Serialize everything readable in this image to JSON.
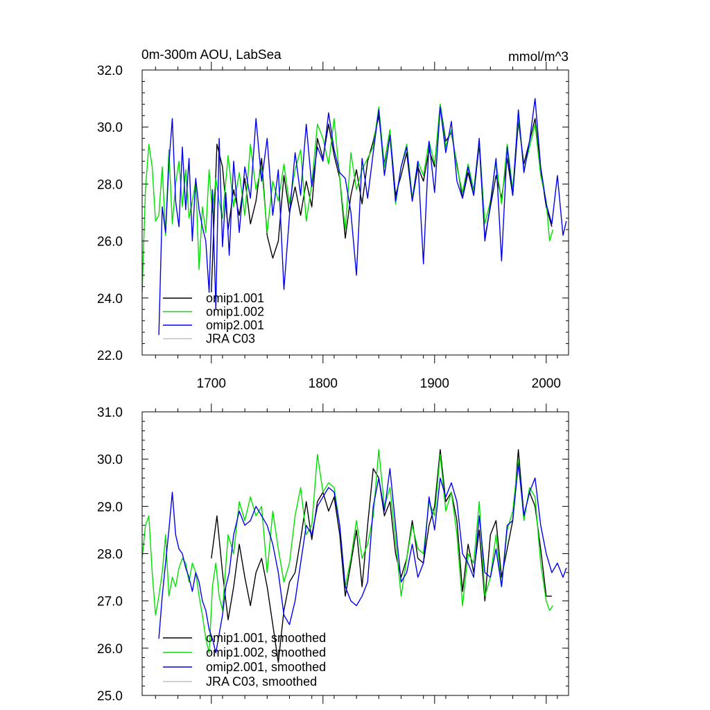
{
  "chart_data": [
    {
      "type": "line",
      "title": "0m-300m AOU, LabSea",
      "units": "mmol/m^3",
      "xlim": [
        1638,
        2020
      ],
      "ylim": [
        22.0,
        32.0
      ],
      "xticks": [
        1700,
        1800,
        1900,
        2000
      ],
      "xtick_labels": [
        "1700",
        "1800",
        "1900",
        "2000"
      ],
      "yticks": [
        22.0,
        24.0,
        26.0,
        28.0,
        30.0,
        32.0
      ],
      "ytick_labels": [
        "22.0",
        "24.0",
        "26.0",
        "28.0",
        "30.0",
        "32.0"
      ],
      "legend_position": "bottom-left",
      "series": [
        {
          "name": "omip1.001",
          "color": "#000000",
          "x": [
            1700,
            1705,
            1710,
            1715,
            1720,
            1725,
            1730,
            1735,
            1740,
            1745,
            1750,
            1755,
            1760,
            1765,
            1770,
            1775,
            1780,
            1785,
            1790,
            1795,
            1800,
            1805,
            1810,
            1815,
            1820,
            1825,
            1830,
            1835,
            1840,
            1845,
            1850,
            1855,
            1860,
            1865,
            1870,
            1875,
            1880,
            1885,
            1890,
            1895,
            1900,
            1905,
            1910,
            1915,
            1920,
            1925,
            1930,
            1935,
            1940,
            1945,
            1950,
            1955,
            1960,
            1965,
            1970,
            1975,
            1980,
            1985,
            1990,
            1995,
            2000,
            2005
          ],
          "y": [
            24.2,
            29.4,
            28.6,
            26.4,
            27.8,
            26.9,
            28.2,
            26.6,
            27.4,
            28.9,
            26.2,
            25.4,
            26.0,
            28.3,
            27.0,
            27.9,
            26.9,
            28.1,
            27.2,
            29.6,
            28.9,
            30.1,
            29.0,
            28.2,
            26.1,
            27.6,
            28.5,
            27.3,
            28.8,
            29.5,
            30.4,
            28.7,
            29.9,
            27.6,
            28.3,
            29.1,
            27.4,
            28.6,
            28.1,
            29.2,
            28.6,
            30.8,
            29.5,
            29.8,
            28.7,
            27.5,
            28.4,
            27.6,
            29.4,
            26.1,
            27.2,
            28.3,
            27.5,
            28.9,
            27.6,
            30.2,
            28.7,
            29.5,
            30.3,
            28.5,
            27.2,
            26.5
          ]
        },
        {
          "name": "omip1.002",
          "color": "#00e000",
          "x": [
            1638,
            1641,
            1644,
            1647,
            1650,
            1653,
            1656,
            1659,
            1662,
            1665,
            1668,
            1671,
            1674,
            1677,
            1680,
            1683,
            1686,
            1689,
            1692,
            1695,
            1698,
            1701,
            1704,
            1707,
            1710,
            1715,
            1720,
            1725,
            1730,
            1735,
            1740,
            1745,
            1750,
            1755,
            1760,
            1765,
            1770,
            1775,
            1780,
            1785,
            1790,
            1795,
            1800,
            1805,
            1810,
            1815,
            1820,
            1825,
            1830,
            1835,
            1840,
            1845,
            1850,
            1855,
            1860,
            1865,
            1870,
            1875,
            1880,
            1885,
            1890,
            1895,
            1900,
            1905,
            1910,
            1915,
            1920,
            1925,
            1930,
            1935,
            1940,
            1945,
            1950,
            1955,
            1960,
            1965,
            1970,
            1975,
            1980,
            1985,
            1990,
            1995,
            2000,
            2003,
            2006
          ],
          "y": [
            24.2,
            27.8,
            29.4,
            28.6,
            26.7,
            26.9,
            28.6,
            26.2,
            29.2,
            26.6,
            28.0,
            28.8,
            27.2,
            28.5,
            26.8,
            27.4,
            28.1,
            25.0,
            27.2,
            26.3,
            28.5,
            27.0,
            28.2,
            27.4,
            26.8,
            29.0,
            27.2,
            28.4,
            26.9,
            29.4,
            27.8,
            28.6,
            26.3,
            28.1,
            27.4,
            28.7,
            27.3,
            28.5,
            29.2,
            26.7,
            28.0,
            30.1,
            29.6,
            28.7,
            30.3,
            28.2,
            26.4,
            29.1,
            27.8,
            28.5,
            28.9,
            29.3,
            30.7,
            28.6,
            29.9,
            27.3,
            28.6,
            29.4,
            27.5,
            28.8,
            28.3,
            29.5,
            28.7,
            30.8,
            29.3,
            29.9,
            28.6,
            27.7,
            28.7,
            27.8,
            29.5,
            26.6,
            27.4,
            28.8,
            27.3,
            29.4,
            27.8,
            30.4,
            28.5,
            29.3,
            30.1,
            28.3,
            27.4,
            26.0,
            26.4
          ]
        },
        {
          "name": "omip2.001",
          "color": "#0000ee",
          "x": [
            1653,
            1656,
            1659,
            1662,
            1665,
            1668,
            1671,
            1674,
            1677,
            1680,
            1683,
            1686,
            1689,
            1692,
            1695,
            1698,
            1701,
            1704,
            1707,
            1710,
            1713,
            1716,
            1720,
            1725,
            1730,
            1735,
            1740,
            1745,
            1750,
            1755,
            1760,
            1765,
            1770,
            1775,
            1780,
            1785,
            1790,
            1795,
            1800,
            1805,
            1810,
            1815,
            1820,
            1825,
            1830,
            1835,
            1840,
            1845,
            1850,
            1855,
            1860,
            1865,
            1870,
            1875,
            1880,
            1885,
            1890,
            1895,
            1900,
            1905,
            1910,
            1915,
            1920,
            1925,
            1930,
            1935,
            1940,
            1945,
            1950,
            1955,
            1960,
            1965,
            1970,
            1975,
            1980,
            1985,
            1990,
            1995,
            2000,
            2005,
            2010,
            2015,
            2018
          ],
          "y": [
            22.7,
            27.2,
            26.3,
            28.7,
            30.3,
            27.4,
            26.5,
            29.3,
            27.1,
            28.9,
            26.0,
            28.2,
            27.1,
            26.5,
            26.0,
            24.2,
            27.8,
            23.6,
            29.6,
            25.8,
            27.7,
            25.5,
            28.8,
            26.3,
            28.6,
            27.5,
            30.3,
            28.1,
            29.6,
            26.9,
            28.5,
            24.3,
            26.9,
            29.1,
            27.6,
            30.1,
            27.9,
            29.3,
            28.8,
            30.5,
            29.2,
            28.4,
            28.2,
            27.0,
            24.8,
            28.9,
            27.5,
            29.1,
            30.6,
            28.3,
            29.7,
            27.4,
            28.6,
            29.3,
            27.4,
            28.8,
            25.2,
            29.5,
            27.7,
            30.7,
            29.1,
            30.2,
            28.1,
            27.5,
            28.6,
            27.6,
            29.6,
            26.0,
            27.3,
            28.9,
            25.3,
            29.3,
            27.6,
            30.6,
            28.4,
            29.5,
            31.0,
            28.6,
            27.3,
            26.6,
            28.3,
            26.2,
            26.7
          ]
        },
        {
          "name": "JRA C03",
          "color": "#c0c0c0",
          "x": [],
          "y": []
        }
      ]
    },
    {
      "type": "line",
      "title": "",
      "xlim": [
        1638,
        2020
      ],
      "ylim": [
        25.0,
        31.0
      ],
      "xticks": [
        1700,
        1800,
        1900,
        2000
      ],
      "yticks": [
        25.0,
        26.0,
        27.0,
        28.0,
        29.0,
        30.0,
        31.0
      ],
      "ytick_labels": [
        "25.0",
        "26.0",
        "27.0",
        "28.0",
        "29.0",
        "30.0",
        "31.0"
      ],
      "legend_position": "bottom-left",
      "series": [
        {
          "name": "omip1.001, smoothed",
          "color": "#000000",
          "x": [
            1700,
            1705,
            1710,
            1715,
            1720,
            1725,
            1730,
            1735,
            1740,
            1745,
            1750,
            1755,
            1760,
            1765,
            1770,
            1775,
            1780,
            1785,
            1790,
            1795,
            1800,
            1805,
            1810,
            1815,
            1820,
            1825,
            1830,
            1835,
            1840,
            1845,
            1850,
            1855,
            1860,
            1865,
            1870,
            1875,
            1880,
            1885,
            1890,
            1895,
            1900,
            1905,
            1910,
            1915,
            1920,
            1925,
            1930,
            1935,
            1940,
            1945,
            1950,
            1955,
            1960,
            1965,
            1970,
            1975,
            1980,
            1985,
            1990,
            1995,
            2000,
            2005
          ],
          "y": [
            27.9,
            28.8,
            27.6,
            26.6,
            27.3,
            28.2,
            27.5,
            26.9,
            27.6,
            27.9,
            27.3,
            26.5,
            25.7,
            26.8,
            27.4,
            27.6,
            28.3,
            29.1,
            28.3,
            29.1,
            29.3,
            28.9,
            29.2,
            28.4,
            27.1,
            27.8,
            28.5,
            27.3,
            28.6,
            29.8,
            29.6,
            28.8,
            29.1,
            28.0,
            27.5,
            27.9,
            28.7,
            27.9,
            27.8,
            28.6,
            29.0,
            30.2,
            29.1,
            29.3,
            28.7,
            27.2,
            28.2,
            27.6,
            28.5,
            27.0,
            28.4,
            28.7,
            27.5,
            28.1,
            28.7,
            30.2,
            28.8,
            29.3,
            29.0,
            28.1,
            27.1,
            27.1
          ]
        },
        {
          "name": "omip1.002, smoothed",
          "color": "#00e000",
          "x": [
            1638,
            1641,
            1644,
            1647,
            1650,
            1653,
            1656,
            1659,
            1662,
            1665,
            1668,
            1671,
            1674,
            1677,
            1680,
            1683,
            1686,
            1689,
            1692,
            1695,
            1698,
            1701,
            1704,
            1707,
            1710,
            1715,
            1720,
            1725,
            1730,
            1735,
            1740,
            1745,
            1750,
            1755,
            1760,
            1765,
            1770,
            1775,
            1780,
            1785,
            1790,
            1795,
            1800,
            1805,
            1810,
            1815,
            1820,
            1825,
            1830,
            1835,
            1840,
            1845,
            1850,
            1855,
            1860,
            1865,
            1870,
            1875,
            1880,
            1885,
            1890,
            1895,
            1900,
            1905,
            1910,
            1915,
            1920,
            1925,
            1930,
            1935,
            1940,
            1945,
            1950,
            1955,
            1960,
            1965,
            1970,
            1975,
            1980,
            1985,
            1990,
            1995,
            2000,
            2003,
            2006
          ],
          "y": [
            27.9,
            28.6,
            28.8,
            27.6,
            26.7,
            27.1,
            27.6,
            28.4,
            27.1,
            27.5,
            27.3,
            27.7,
            27.9,
            27.8,
            27.4,
            27.8,
            27.6,
            27.1,
            26.7,
            26.2,
            25.9,
            27.3,
            27.8,
            27.1,
            26.8,
            28.4,
            28.0,
            29.1,
            28.7,
            29.2,
            28.8,
            29.0,
            27.6,
            28.9,
            28.1,
            27.4,
            27.8,
            28.8,
            29.4,
            28.4,
            28.6,
            30.1,
            29.3,
            29.5,
            29.4,
            28.6,
            27.3,
            27.9,
            28.7,
            27.9,
            28.2,
            28.8,
            30.2,
            29.0,
            29.4,
            28.3,
            27.1,
            27.9,
            28.6,
            28.1,
            28.0,
            29.1,
            28.8,
            30.1,
            28.9,
            29.3,
            28.4,
            26.9,
            28.0,
            27.8,
            29.1,
            27.1,
            27.5,
            28.4,
            27.3,
            28.5,
            28.9,
            30.0,
            28.7,
            29.4,
            29.2,
            27.8,
            27.0,
            26.8,
            26.9
          ]
        },
        {
          "name": "omip2.001, smoothed",
          "color": "#0000ee",
          "x": [
            1653,
            1656,
            1659,
            1662,
            1665,
            1668,
            1671,
            1674,
            1677,
            1680,
            1683,
            1686,
            1689,
            1692,
            1695,
            1698,
            1701,
            1704,
            1707,
            1710,
            1713,
            1716,
            1720,
            1725,
            1730,
            1735,
            1740,
            1745,
            1750,
            1755,
            1760,
            1765,
            1770,
            1775,
            1780,
            1785,
            1790,
            1795,
            1800,
            1805,
            1810,
            1815,
            1820,
            1825,
            1830,
            1835,
            1840,
            1845,
            1850,
            1855,
            1860,
            1865,
            1870,
            1875,
            1880,
            1885,
            1890,
            1895,
            1900,
            1905,
            1910,
            1915,
            1920,
            1925,
            1930,
            1935,
            1940,
            1945,
            1950,
            1955,
            1960,
            1965,
            1970,
            1975,
            1980,
            1985,
            1990,
            1995,
            2000,
            2005,
            2010,
            2015,
            2018
          ],
          "y": [
            26.2,
            27.1,
            27.8,
            28.5,
            29.3,
            28.4,
            28.1,
            28.0,
            27.7,
            27.5,
            27.2,
            27.6,
            27.4,
            27.0,
            26.8,
            26.4,
            26.2,
            25.9,
            26.3,
            26.7,
            27.3,
            27.6,
            28.4,
            28.9,
            28.6,
            28.7,
            29.0,
            28.8,
            28.6,
            28.2,
            27.6,
            26.7,
            26.5,
            27.0,
            27.8,
            28.6,
            28.4,
            29.0,
            29.2,
            29.4,
            29.3,
            28.6,
            27.3,
            27.0,
            26.9,
            27.1,
            27.4,
            29.0,
            29.6,
            28.9,
            29.8,
            28.6,
            27.4,
            27.6,
            28.2,
            27.5,
            27.8,
            29.2,
            28.5,
            29.6,
            29.2,
            29.5,
            29.1,
            28.0,
            27.8,
            27.5,
            28.8,
            27.6,
            27.5,
            28.1,
            27.3,
            28.6,
            28.7,
            29.9,
            28.8,
            29.3,
            29.6,
            28.6,
            28.0,
            27.6,
            27.8,
            27.5,
            27.7
          ]
        },
        {
          "name": "JRA C03, smoothed",
          "color": "#c0c0c0",
          "x": [],
          "y": []
        }
      ]
    }
  ]
}
